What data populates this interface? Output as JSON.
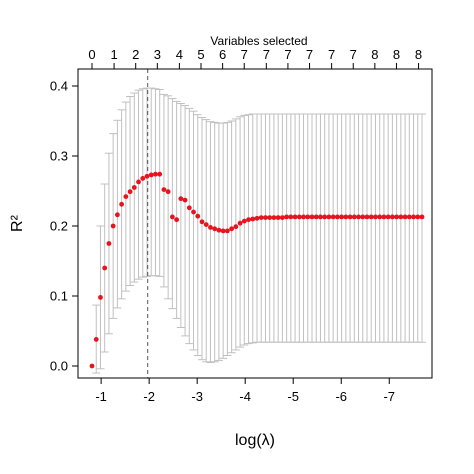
{
  "colors": {
    "points": "#e8131f",
    "error_bars": "#c0c0c0",
    "axes": "#000000",
    "reference_line": "#555555",
    "background": "#ffffff"
  },
  "chart_data": {
    "type": "scatter",
    "title": "",
    "top_axis_title": "Variables selected",
    "xlabel": "log(λ)",
    "ylabel": "R²",
    "grid": false,
    "legend": "none",
    "xlim": [
      -0.8,
      -7.8
    ],
    "ylim": [
      0.0,
      0.4
    ],
    "x_ticks": [
      -1,
      -2,
      -3,
      -4,
      -5,
      -6,
      -7
    ],
    "x_tick_labels": [
      "-1",
      "-2",
      "-3",
      "-4",
      "-5",
      "-6",
      "-7"
    ],
    "y_ticks": [
      0.0,
      0.1,
      0.2,
      0.3,
      0.4
    ],
    "y_tick_labels": [
      "0.0",
      "0.1",
      "0.2",
      "0.3",
      "0.4"
    ],
    "top_axis": {
      "x": [
        -0.81,
        -1.27,
        -1.72,
        -2.17,
        -2.63,
        -3.08,
        -3.53,
        -3.98,
        -4.44,
        -4.89,
        -5.34,
        -5.8,
        -6.25,
        -6.7,
        -7.15,
        -7.61
      ],
      "labels": [
        "0",
        "1",
        "2",
        "3",
        "4",
        "5",
        "6",
        "7",
        "7",
        "7",
        "7",
        "7",
        "7",
        "8",
        "8",
        "8"
      ]
    },
    "reference_line_x": -1.97,
    "lambda_min_x": -1.97,
    "series": [
      {
        "x_start": -0.81,
        "x_step": -0.0881,
        "y": [
          0.0,
          0.038,
          0.098,
          0.14,
          0.175,
          0.2,
          0.216,
          0.231,
          0.242,
          0.249,
          0.255,
          0.263,
          0.268,
          0.271,
          0.273,
          0.274,
          0.274,
          0.252,
          0.249,
          0.213,
          0.209,
          0.239,
          0.237,
          0.226,
          0.22,
          0.214,
          0.206,
          0.202,
          0.198,
          0.196,
          0.194,
          0.193,
          0.193,
          0.196,
          0.199,
          0.204,
          0.207,
          0.209,
          0.21,
          0.211,
          0.212,
          0.212,
          0.212,
          0.212,
          0.212,
          0.212,
          0.213,
          0.213,
          0.213,
          0.213,
          0.213,
          0.213,
          0.213,
          0.213,
          0.213,
          0.213,
          0.213,
          0.213,
          0.213,
          0.213,
          0.213,
          0.213,
          0.213,
          0.213,
          0.213,
          0.213,
          0.213,
          0.213,
          0.213,
          0.213,
          0.213,
          0.213,
          0.213,
          0.213,
          0.213,
          0.213,
          0.213,
          0.213,
          0.213
        ],
        "upper": [
          0.0,
          0.087,
          0.2,
          0.26,
          0.304,
          0.332,
          0.351,
          0.366,
          0.377,
          0.385,
          0.39,
          0.394,
          0.396,
          0.397,
          0.397,
          0.396,
          0.395,
          0.388,
          0.386,
          0.382,
          0.378,
          0.375,
          0.372,
          0.368,
          0.364,
          0.359,
          0.355,
          0.352,
          0.349,
          0.348,
          0.347,
          0.347,
          0.348,
          0.35,
          0.353,
          0.356,
          0.358,
          0.359,
          0.36,
          0.36,
          0.36,
          0.36,
          0.36,
          0.36,
          0.36,
          0.36,
          0.36,
          0.36,
          0.36,
          0.36,
          0.36,
          0.36,
          0.36,
          0.36,
          0.36,
          0.36,
          0.36,
          0.36,
          0.36,
          0.36,
          0.36,
          0.36,
          0.36,
          0.36,
          0.36,
          0.36,
          0.36,
          0.36,
          0.36,
          0.36,
          0.36,
          0.36,
          0.36,
          0.36,
          0.36,
          0.36,
          0.36,
          0.36,
          0.36
        ],
        "lower": [
          0.0,
          -0.01,
          -0.004,
          0.02,
          0.046,
          0.068,
          0.083,
          0.096,
          0.107,
          0.115,
          0.12,
          0.124,
          0.127,
          0.128,
          0.129,
          0.129,
          0.128,
          0.113,
          0.096,
          0.082,
          0.068,
          0.055,
          0.043,
          0.032,
          0.023,
          0.015,
          0.009,
          0.006,
          0.005,
          0.006,
          0.008,
          0.011,
          0.015,
          0.019,
          0.023,
          0.027,
          0.03,
          0.032,
          0.033,
          0.034,
          0.034,
          0.034,
          0.034,
          0.034,
          0.034,
          0.034,
          0.034,
          0.034,
          0.034,
          0.034,
          0.034,
          0.034,
          0.034,
          0.034,
          0.034,
          0.034,
          0.034,
          0.034,
          0.034,
          0.034,
          0.034,
          0.034,
          0.034,
          0.034,
          0.034,
          0.034,
          0.034,
          0.034,
          0.034,
          0.034,
          0.034,
          0.034,
          0.034,
          0.034,
          0.034,
          0.034,
          0.034,
          0.034,
          0.034
        ]
      }
    ]
  }
}
